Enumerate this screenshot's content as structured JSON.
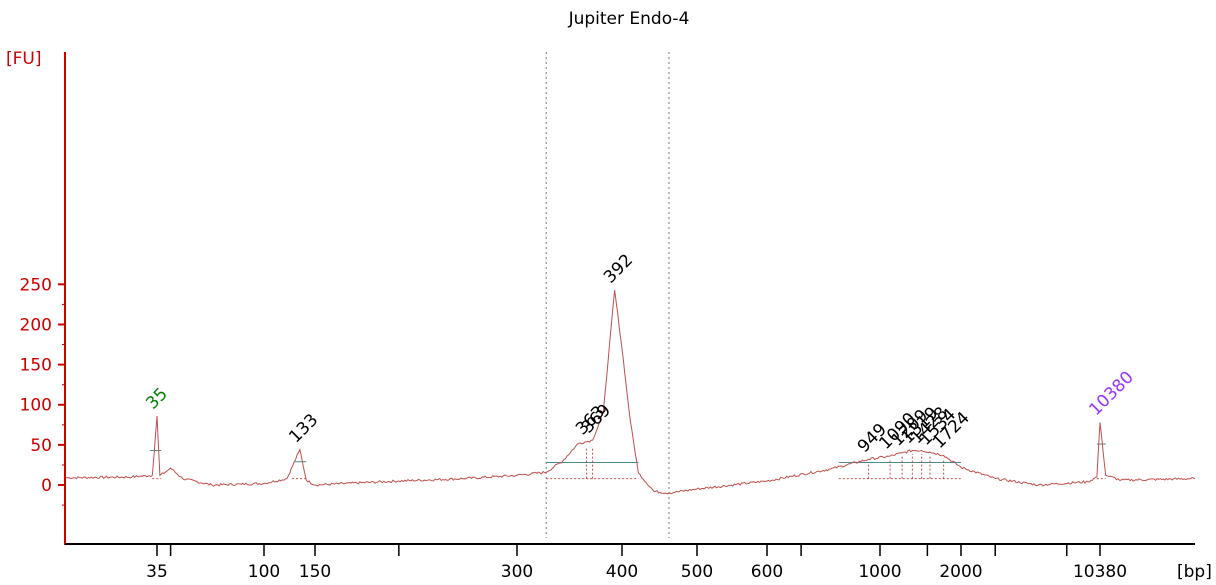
{
  "chart_data": {
    "type": "line",
    "title": "Jupiter Endo-4",
    "ylabel": "[FU]",
    "xlabel": "[bp]",
    "ylim": [
      -35,
      265
    ],
    "y_ticks": [
      0,
      50,
      100,
      150,
      200,
      250
    ],
    "x_scale": "electropherogram (piecewise, ladder-calibrated)",
    "x_tick_labels": [
      "35",
      "100",
      "150",
      "300",
      "400",
      "500",
      "600",
      "1000",
      "2000",
      "10380"
    ],
    "grid": false,
    "colors": {
      "trace": "#c0504d",
      "axis": "#cc0000",
      "text": "#000000",
      "lower_marker": "#008000",
      "upper_marker": "#9933ff",
      "baseline_bar": "#4a8a8a"
    },
    "peak_labels": [
      {
        "label": "35",
        "bp": 35,
        "height": 86,
        "role": "lower marker"
      },
      {
        "label": "133",
        "bp": 133,
        "height": 44
      },
      {
        "label": "363",
        "bp": 363,
        "height": 54
      },
      {
        "label": "369",
        "bp": 369,
        "height": 56
      },
      {
        "label": "392",
        "bp": 392,
        "height": 243
      },
      {
        "label": "949",
        "bp": 949,
        "height": 32
      },
      {
        "label": "1090",
        "bp": 1090,
        "height": 36
      },
      {
        "label": "1209",
        "bp": 1209,
        "height": 40
      },
      {
        "label": "1319",
        "bp": 1319,
        "height": 43
      },
      {
        "label": "1428",
        "bp": 1428,
        "height": 43
      },
      {
        "label": "1534",
        "bp": 1534,
        "height": 41
      },
      {
        "label": "1724",
        "bp": 1724,
        "height": 37
      },
      {
        "label": "10380",
        "bp": 10380,
        "height": 78,
        "role": "upper marker"
      }
    ],
    "regions": [
      {
        "from_bp": 325,
        "to_bp": 460
      }
    ],
    "series": [
      {
        "values_bp_fu": [
          [
            20,
            9
          ],
          [
            30,
            10
          ],
          [
            34,
            12
          ],
          [
            35,
            86
          ],
          [
            36,
            12
          ],
          [
            38,
            16
          ],
          [
            40,
            21
          ],
          [
            45,
            8
          ],
          [
            60,
            0
          ],
          [
            80,
            1
          ],
          [
            100,
            2
          ],
          [
            120,
            8
          ],
          [
            133,
            44
          ],
          [
            140,
            6
          ],
          [
            150,
            0
          ],
          [
            200,
            5
          ],
          [
            250,
            8
          ],
          [
            300,
            12
          ],
          [
            325,
            16
          ],
          [
            340,
            30
          ],
          [
            355,
            52
          ],
          [
            363,
            54
          ],
          [
            369,
            56
          ],
          [
            380,
            90
          ],
          [
            392,
            243
          ],
          [
            400,
            170
          ],
          [
            410,
            80
          ],
          [
            420,
            15
          ],
          [
            440,
            -8
          ],
          [
            460,
            -10
          ],
          [
            500,
            -5
          ],
          [
            600,
            5
          ],
          [
            800,
            20
          ],
          [
            949,
            32
          ],
          [
            1090,
            36
          ],
          [
            1209,
            40
          ],
          [
            1319,
            43
          ],
          [
            1428,
            43
          ],
          [
            1534,
            41
          ],
          [
            1724,
            37
          ],
          [
            2000,
            22
          ],
          [
            3000,
            8
          ],
          [
            5000,
            0
          ],
          [
            9000,
            4
          ],
          [
            10000,
            10
          ],
          [
            10380,
            78
          ],
          [
            10800,
            12
          ],
          [
            12000,
            6
          ],
          [
            20000,
            8
          ]
        ]
      }
    ]
  }
}
